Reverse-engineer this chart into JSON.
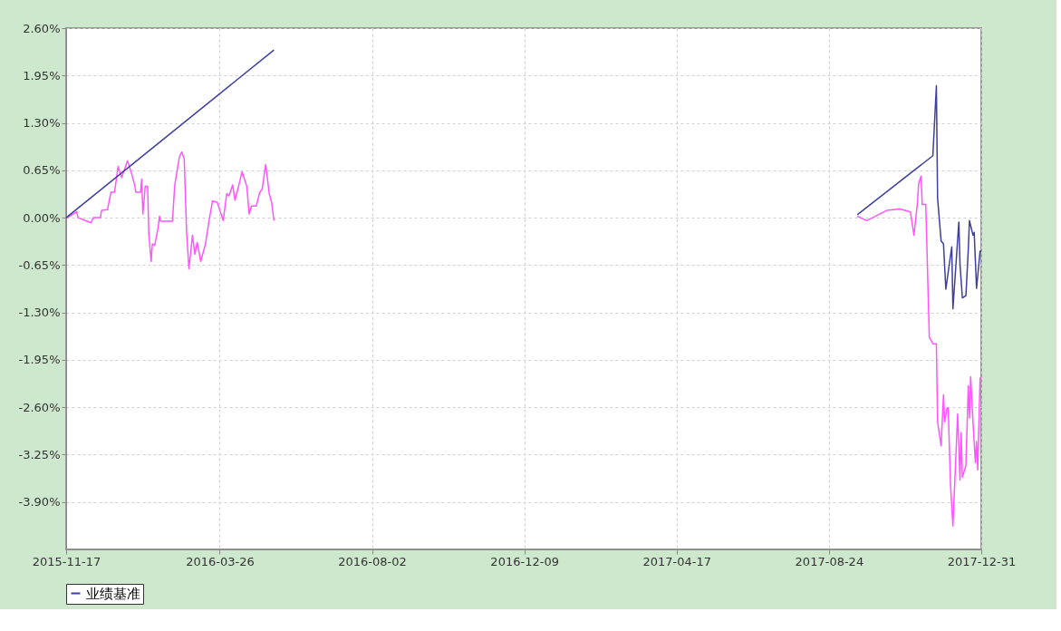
{
  "chart_data": {
    "type": "line",
    "xlim": [
      "2015-11-17",
      "2017-12-31"
    ],
    "xticks": [
      "2015-11-17",
      "2016-03-26",
      "2016-08-02",
      "2016-12-09",
      "2017-04-17",
      "2017-08-24",
      "2017-12-31"
    ],
    "ylim": [
      -4.55,
      2.6
    ],
    "yticks": [
      {
        "value": 2.6,
        "label": "2.60%"
      },
      {
        "value": 1.95,
        "label": "1.95%"
      },
      {
        "value": 1.3,
        "label": "1.30%"
      },
      {
        "value": 0.65,
        "label": "0.65%"
      },
      {
        "value": 0,
        "label": "0.00%"
      },
      {
        "value": -0.65,
        "label": "-0.65%"
      },
      {
        "value": -1.3,
        "label": "-1.30%"
      },
      {
        "value": -1.95,
        "label": "-1.95%"
      },
      {
        "value": -2.6,
        "label": "-2.60%"
      },
      {
        "value": -3.25,
        "label": "-3.25%"
      },
      {
        "value": -3.9,
        "label": "-3.90%"
      }
    ],
    "grid": true,
    "legend": "bottom",
    "series": [
      {
        "color": "#ff55ff",
        "x": [
          "2015-11-17",
          "2015-11-18",
          "2015-11-26",
          "2015-11-27",
          "2015-12-08",
          "2015-12-10",
          "2015-12-16",
          "2015-12-17",
          "2015-12-22",
          "2015-12-25",
          "2015-12-28",
          "2015-12-31",
          "2016-01-03",
          "2016-01-08",
          "2016-01-11",
          "2016-01-14",
          "2016-01-15",
          "2016-01-19",
          "2016-01-20",
          "2016-01-21",
          "2016-01-23",
          "2016-01-25",
          "2016-01-26",
          "2016-01-28",
          "2016-01-29",
          "2016-01-31",
          "2016-02-03",
          "2016-02-04",
          "2016-02-05",
          "2016-02-15",
          "2016-02-17",
          "2016-02-21",
          "2016-02-23",
          "2016-02-25",
          "2016-02-27",
          "2016-02-29",
          "2016-03-03",
          "2016-03-05",
          "2016-03-07",
          "2016-03-10",
          "2016-03-14",
          "2016-03-17",
          "2016-03-20",
          "2016-03-24",
          "2016-03-29",
          "2016-04-01",
          "2016-04-03",
          "2016-04-06",
          "2016-04-08",
          "2016-04-11",
          "2016-04-14",
          "2016-04-18",
          "2016-04-20",
          "2016-04-22",
          "2016-04-26",
          "2016-04-29",
          "2016-05-01",
          "2016-05-04",
          "2016-05-07",
          "2016-05-09",
          "2016-05-11",
          "2017-01-01",
          "2017-09-17",
          "2017-09-25",
          "2017-10-12",
          "2017-10-23",
          "2017-11-01",
          "2017-11-04",
          "2017-11-07",
          "2017-11-08",
          "2017-11-10",
          "2017-11-11",
          "2017-11-14",
          "2017-11-17",
          "2017-11-20",
          "2017-11-23",
          "2017-11-24",
          "2017-11-27",
          "2017-11-29",
          "2017-11-30",
          "2017-12-02",
          "2017-12-03",
          "2017-12-05",
          "2017-12-07",
          "2017-12-11",
          "2017-12-13",
          "2017-12-14",
          "2017-12-15",
          "2017-12-18",
          "2017-12-20",
          "2017-12-21",
          "2017-12-22",
          "2017-12-24",
          "2017-12-26",
          "2017-12-27",
          "2017-12-28",
          "2017-12-30",
          "2017-12-31"
        ],
        "values": [
          0,
          0,
          0.08,
          0,
          -0.07,
          0,
          0,
          0.1,
          0.11,
          0.35,
          0.35,
          0.7,
          0.55,
          0.78,
          0.63,
          0.45,
          0.35,
          0.35,
          0.53,
          0.05,
          0.43,
          0.43,
          -0.22,
          -0.6,
          -0.36,
          -0.38,
          -0.13,
          0.02,
          -0.05,
          -0.05,
          0.45,
          0.84,
          0.9,
          0.81,
          -0.2,
          -0.7,
          -0.24,
          -0.5,
          -0.34,
          -0.6,
          -0.36,
          -0.04,
          0.23,
          0.21,
          -0.04,
          0.33,
          0.3,
          0.45,
          0.24,
          0.43,
          0.63,
          0.43,
          0.05,
          0.16,
          0.16,
          0.35,
          0.39,
          0.73,
          0.33,
          0.21,
          -0.04,
          null,
          0.02,
          -0.04,
          0.1,
          0.12,
          0.08,
          -0.24,
          0.21,
          0.47,
          0.57,
          0.18,
          0.18,
          -1.64,
          -1.73,
          -1.73,
          -2.8,
          -3.13,
          -2.43,
          -2.8,
          -2.61,
          -2.61,
          -3.68,
          -4.23,
          -2.69,
          -3.6,
          -2.95,
          -3.56,
          -3.4,
          -2.31,
          -2.75,
          -2.18,
          -2.8,
          -3.36,
          -3.07,
          -3.46,
          -2.2,
          -2.19
        ]
      },
      {
        "name": "业绩基准",
        "color": "#3f3f9f",
        "x": [
          "2015-11-17",
          "2016-05-11",
          "2017-01-01",
          "2017-09-17",
          "2017-11-20",
          "2017-11-23",
          "2017-11-24",
          "2017-11-27",
          "2017-11-29",
          "2017-12-01",
          "2017-12-06",
          "2017-12-07",
          "2017-12-12",
          "2017-12-13",
          "2017-12-15",
          "2017-12-18",
          "2017-12-20",
          "2017-12-21",
          "2017-12-24",
          "2017-12-25",
          "2017-12-27",
          "2017-12-30",
          "2017-12-31"
        ],
        "values": [
          0,
          2.3,
          null,
          0.04,
          0.85,
          1.81,
          0.27,
          -0.32,
          -0.36,
          -0.98,
          -0.4,
          -1.25,
          -0.06,
          -0.64,
          -1.1,
          -1.07,
          -0.44,
          -0.04,
          -0.24,
          -0.2,
          -0.97,
          -0.46,
          -0.46
        ]
      }
    ]
  }
}
